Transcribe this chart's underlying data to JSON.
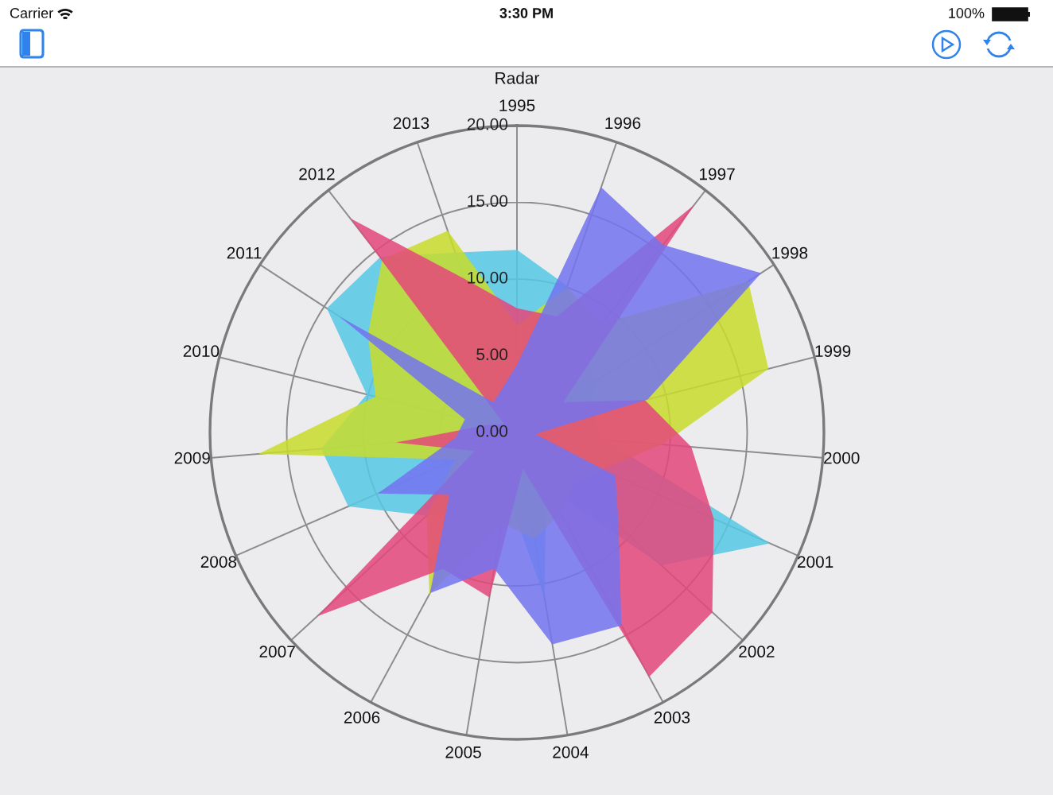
{
  "chart_data": {
    "type": "radar",
    "title": "Radar",
    "annotations": [
      "Carrier",
      "3:30 PM",
      "100%"
    ],
    "categories": [
      "1995",
      "1996",
      "1997",
      "1998",
      "1999",
      "2000",
      "2001",
      "2002",
      "2003",
      "2004",
      "2005",
      "2006",
      "2007",
      "2008",
      "2009",
      "2010",
      "2011",
      "2012",
      "2013"
    ],
    "ylim": [
      0,
      20
    ],
    "yticks": [
      {
        "value": 0,
        "label": "0.00"
      },
      {
        "value": 5,
        "label": "5.00"
      },
      {
        "value": 10,
        "label": "10.00"
      },
      {
        "value": 15,
        "label": "15.00"
      },
      {
        "value": 20,
        "label": "20.00"
      }
    ],
    "grid": true,
    "series": [
      {
        "color": "#55c9e4",
        "values": [
          11.9,
          10.1,
          7,
          6,
          5,
          5.7,
          18.0,
          12.8,
          4,
          10.9,
          4,
          6,
          8,
          12.0,
          12.8,
          10.1,
          14.8,
          14.5,
          12.4
        ]
      },
      {
        "color": "#c9dc2c",
        "values": [
          7,
          10,
          9,
          18.0,
          16.9,
          9.5,
          6,
          5,
          6,
          7,
          6,
          12.0,
          8,
          4.4,
          16.9,
          9.5,
          11.6,
          14.3,
          13.9
        ]
      },
      {
        "color": "#e4467a",
        "values": [
          8.1,
          8,
          18.8,
          3.6,
          8.6,
          11.4,
          14.0,
          17.3,
          18.1,
          2.4,
          10.9,
          10.1,
          17.7,
          3,
          7.9,
          2,
          1,
          17.7,
          10.6
        ]
      },
      {
        "color": "#7373f0",
        "values": [
          4.4,
          16.9,
          15.5,
          19.0,
          8.8,
          1.2,
          7.0,
          9.0,
          14.3,
          14.0,
          9.0,
          11.9,
          6.0,
          9.9,
          4.0,
          3.5,
          13.8,
          2.5,
          3
        ]
      }
    ]
  }
}
